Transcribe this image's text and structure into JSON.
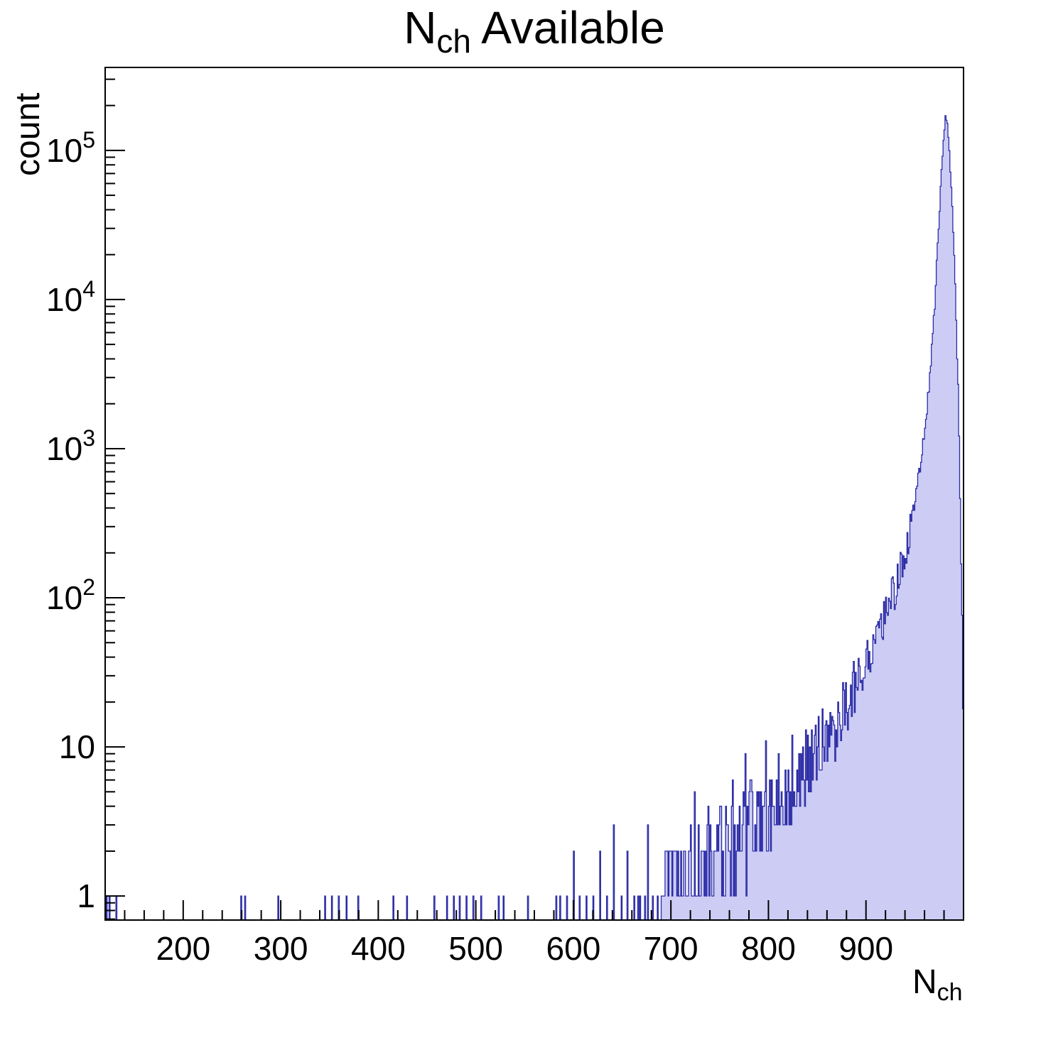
{
  "chart_data": {
    "type": "histogram",
    "title": {
      "prefix": "N",
      "subscript": "ch",
      "suffix": " Available"
    },
    "xlabel": {
      "prefix": "N",
      "subscript": "ch"
    },
    "ylabel": "count",
    "y_scale": "log",
    "x_range": [
      120,
      1000
    ],
    "y_range": [
      0.69,
      360000
    ],
    "x_major_ticks": [
      200,
      300,
      400,
      500,
      600,
      700,
      800,
      900
    ],
    "x_minor_step": 20,
    "y_major_ticks": [
      1,
      10,
      100,
      1000,
      10000,
      100000
    ],
    "bin_width": 1,
    "legend": "none",
    "grid": "off",
    "colors": {
      "line": "#2b2ba6",
      "fill": "#ccccf5",
      "axis": "#000000",
      "text": "#000000"
    },
    "peak": {
      "x": 981,
      "count": 165000
    },
    "contiguous_start": 690,
    "noise_seed": 9,
    "singles": [
      121,
      124,
      131,
      259,
      263,
      297,
      345,
      352,
      359,
      367,
      379,
      415,
      429,
      457,
      470,
      477,
      483,
      490,
      497,
      505,
      523,
      528,
      553,
      582,
      586,
      593,
      606,
      613,
      620,
      634,
      649,
      662,
      666,
      668,
      673,
      681,
      686
    ],
    "spikes": {
      "600": 2,
      "627": 2,
      "641": 3,
      "655": 2,
      "676": 3,
      "695": 2,
      "702": 2,
      "707": 2,
      "713": 2,
      "718": 2,
      "724": 5,
      "731": 2,
      "738": 4,
      "744": 2,
      "750": 4,
      "757": 3,
      "763": 6,
      "770": 4,
      "776": 9,
      "783": 5,
      "790": 5,
      "797": 11,
      "803": 6,
      "810": 9,
      "817": 7,
      "824": 12,
      "831": 9,
      "838": 13
    },
    "envelope": [
      [
        690,
        1
      ],
      [
        715,
        1.3
      ],
      [
        740,
        1.8
      ],
      [
        765,
        2.4
      ],
      [
        790,
        3.2
      ],
      [
        815,
        4.6
      ],
      [
        840,
        7.5
      ],
      [
        862,
        12
      ],
      [
        880,
        20
      ],
      [
        895,
        32
      ],
      [
        908,
        50
      ],
      [
        920,
        80
      ],
      [
        930,
        115
      ],
      [
        940,
        200
      ],
      [
        948,
        380
      ],
      [
        955,
        750
      ],
      [
        961,
        1600
      ],
      [
        966,
        3800
      ],
      [
        970,
        9500
      ],
      [
        974,
        30000
      ],
      [
        977,
        75000
      ],
      [
        979,
        120000
      ],
      [
        981,
        165000
      ],
      [
        983,
        150000
      ],
      [
        985,
        98000
      ],
      [
        988,
        42000
      ],
      [
        991,
        12000
      ],
      [
        994,
        2600
      ],
      [
        996,
        500
      ],
      [
        998,
        70
      ],
      [
        999,
        16
      ],
      [
        1000,
        7
      ]
    ]
  }
}
